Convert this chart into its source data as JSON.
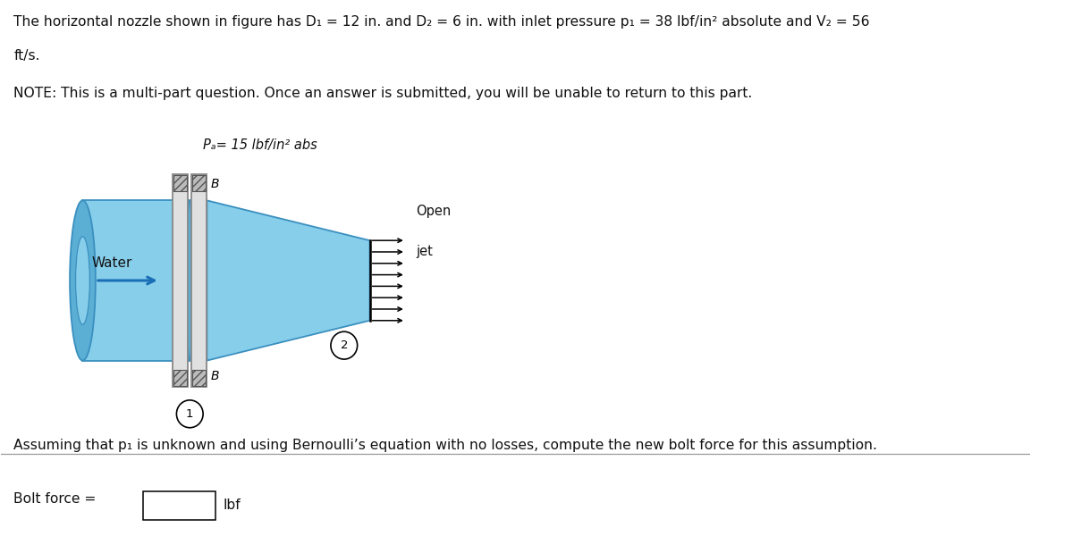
{
  "title_line1": "The horizontal nozzle shown in figure has D₁ = 12 in. and D₂ = 6 in. with inlet pressure p₁ = 38 lbf/in² absolute and V₂ = 56",
  "title_line2": "ft/s.",
  "note_text": "NOTE: This is a multi-part question. Once an answer is submitted, you will be unable to return to this part.",
  "pa_label": "Pₐ= 15 lbf/in² abs",
  "open_jet_label1": "Open",
  "open_jet_label2": "jet",
  "water_label": "Water",
  "label_1": "1",
  "label_2": "2",
  "B_label": "B",
  "bottom_text": "Assuming that p₁ is unknown and using Bernoulli’s equation with no losses, compute the new bolt force for this assumption.",
  "bolt_force_label": "Bolt force =",
  "bolt_force_unit": "lbf",
  "bg_color": "#ffffff",
  "water_color": "#87CEEB",
  "water_color_dark": "#5BAFD4",
  "flange_color": "#e0e0e0",
  "flange_border": "#888888",
  "arrow_color": "#1a6eb5",
  "jet_arrow_color": "#000000",
  "text_color": "#111111",
  "line_color": "#888888"
}
